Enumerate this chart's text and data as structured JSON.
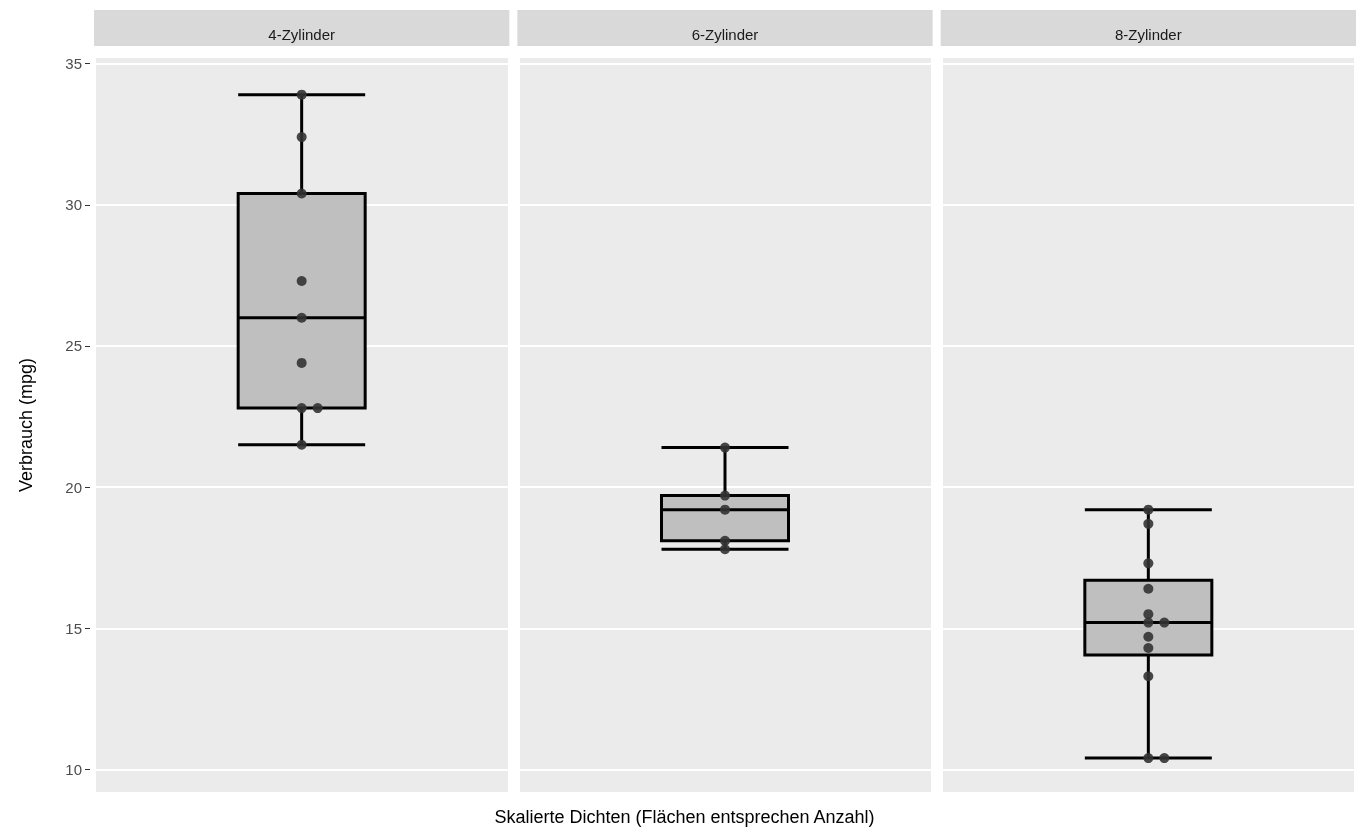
{
  "chart_data": {
    "type": "box",
    "categories": [
      "4-Zylinder",
      "6-Zylinder",
      "8-Zylinder"
    ],
    "xlabel": "Skalierte Dichten (Flächen entsprechen Anzahl)",
    "ylabel": "Verbrauch (mpg)",
    "ylim": [
      9.2,
      35.2
    ],
    "yticks": [
      10,
      15,
      20,
      25,
      30,
      35
    ],
    "grid": true,
    "tick_labels": "y",
    "boxes": [
      {
        "low": 21.5,
        "q1": 22.8,
        "median": 26,
        "q3": 30.4,
        "high": 33.9
      },
      {
        "low": 17.8,
        "q1": 18.1,
        "median": 19.2,
        "q3": 19.7,
        "high": 21.4
      },
      {
        "low": 10.4,
        "q1": 14.05,
        "median": 15.2,
        "q3": 16.7,
        "high": 19.2
      }
    ],
    "color": "#bfbfbf",
    "series": [
      {
        "type": "scatter",
        "color": "#333333",
        "x": [
          "4-Zylinder",
          "4-Zylinder",
          "4-Zylinder",
          "4-Zylinder",
          "4-Zylinder",
          "4-Zylinder",
          "4-Zylinder",
          "4-Zylinder",
          "4-Zylinder",
          "6-Zylinder",
          "6-Zylinder",
          "6-Zylinder",
          "6-Zylinder",
          "6-Zylinder",
          "8-Zylinder",
          "8-Zylinder",
          "8-Zylinder",
          "8-Zylinder",
          "8-Zylinder",
          "8-Zylinder",
          "8-Zylinder",
          "8-Zylinder",
          "8-Zylinder",
          "8-Zylinder",
          "8-Zylinder",
          "8-Zylinder"
        ],
        "values": [
          33.9,
          32.4,
          30.4,
          27.3,
          26,
          24.4,
          22.8,
          22.8,
          21.5,
          21.4,
          19.7,
          19.2,
          18.1,
          17.8,
          19.2,
          18.7,
          17.3,
          16.4,
          15.5,
          15.2,
          15.2,
          14.7,
          14.3,
          13.3,
          10.4,
          10.4
        ]
      }
    ]
  }
}
